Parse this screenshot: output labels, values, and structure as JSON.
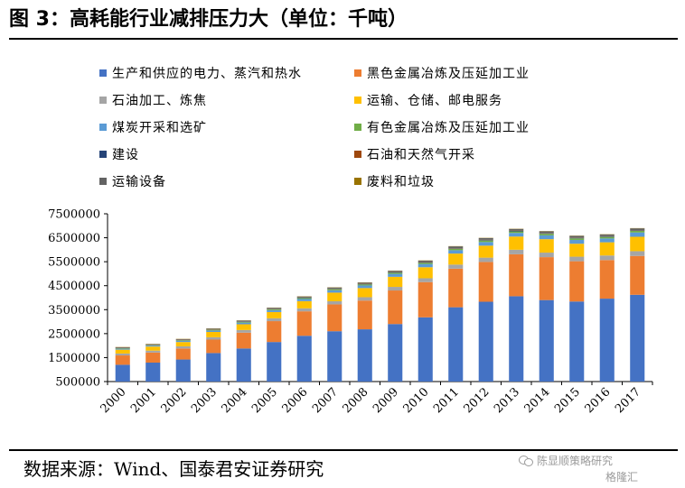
{
  "figure": {
    "title": "图 3：高耗能行业减排压力大（单位：千吨）",
    "source": "数据来源：Wind、国泰君安证券研究"
  },
  "watermark": {
    "line1": "陈显顺策略研究",
    "line2": "格隆汇"
  },
  "chart_data": {
    "type": "bar",
    "stacked": true,
    "title": "",
    "xlabel": "",
    "ylabel": "",
    "ylim": [
      500000,
      7500000
    ],
    "yticks": [
      500000,
      1500000,
      2500000,
      3500000,
      4500000,
      5500000,
      6500000,
      7500000
    ],
    "ytick_labels": [
      "500000",
      "1500000",
      "2500000",
      "3500000",
      "4500000",
      "5500000",
      "6500000",
      "7500000"
    ],
    "grid": false,
    "legend_position": "top",
    "categories": [
      "2000",
      "2001",
      "2002",
      "2003",
      "2004",
      "2005",
      "2006",
      "2007",
      "2008",
      "2009",
      "2010",
      "2011",
      "2012",
      "2013",
      "2014",
      "2015",
      "2016",
      "2017"
    ],
    "series": [
      {
        "name": "生产和供应的电力、蒸汽和热水",
        "color": "#4472C4",
        "values": [
          1200000,
          1290000,
          1420000,
          1690000,
          1880000,
          2150000,
          2410000,
          2600000,
          2680000,
          2900000,
          3180000,
          3600000,
          3830000,
          4060000,
          3900000,
          3840000,
          3960000,
          4120000
        ]
      },
      {
        "name": "黑色金属冶炼及压延加工业",
        "color": "#ED7D31",
        "values": [
          390000,
          420000,
          460000,
          560000,
          660000,
          870000,
          1020000,
          1120000,
          1200000,
          1400000,
          1470000,
          1610000,
          1660000,
          1750000,
          1790000,
          1680000,
          1610000,
          1620000
        ]
      },
      {
        "name": "石油加工、炼焦",
        "color": "#A5A5A5",
        "values": [
          80000,
          80000,
          90000,
          100000,
          110000,
          120000,
          125000,
          130000,
          140000,
          150000,
          160000,
          170000,
          180000,
          190000,
          190000,
          190000,
          190000,
          200000
        ]
      },
      {
        "name": "运输、仓储、邮电服务",
        "color": "#FFC000",
        "values": [
          160000,
          170000,
          180000,
          220000,
          240000,
          260000,
          300000,
          360000,
          380000,
          420000,
          460000,
          460000,
          500000,
          550000,
          560000,
          540000,
          550000,
          600000
        ]
      },
      {
        "name": "煤炭开采和选矿",
        "color": "#5B9BD5",
        "values": [
          40000,
          40000,
          50000,
          60000,
          70000,
          80000,
          90000,
          100000,
          110000,
          120000,
          130000,
          140000,
          150000,
          150000,
          160000,
          160000,
          160000,
          180000
        ]
      },
      {
        "name": "有色金属冶炼及压延加工业",
        "color": "#70AD47",
        "values": [
          20000,
          20000,
          25000,
          30000,
          30000,
          35000,
          40000,
          45000,
          45000,
          50000,
          55000,
          60000,
          65000,
          65000,
          65000,
          65000,
          65000,
          70000
        ]
      },
      {
        "name": "建设",
        "color": "#264478",
        "values": [
          10000,
          10000,
          10000,
          10000,
          12000,
          12000,
          14000,
          15000,
          15000,
          16000,
          17000,
          18000,
          19000,
          20000,
          20000,
          20000,
          20000,
          20000
        ]
      },
      {
        "name": "石油和天然气开采",
        "color": "#9E480E",
        "values": [
          10000,
          10000,
          10000,
          10000,
          10000,
          10000,
          10000,
          10000,
          10000,
          10000,
          12000,
          12000,
          12000,
          12000,
          12000,
          12000,
          12000,
          12000
        ]
      },
      {
        "name": "运输设备",
        "color": "#636363",
        "values": [
          20000,
          20000,
          25000,
          30000,
          30000,
          40000,
          40000,
          45000,
          50000,
          55000,
          60000,
          70000,
          70000,
          70000,
          70000,
          70000,
          70000,
          70000
        ]
      },
      {
        "name": "废料和垃圾",
        "color": "#997300",
        "values": [
          10000,
          10000,
          10000,
          10000,
          10000,
          10000,
          10000,
          10000,
          10000,
          10000,
          10000,
          10000,
          10000,
          10000,
          10000,
          10000,
          10000,
          10000
        ]
      }
    ]
  }
}
